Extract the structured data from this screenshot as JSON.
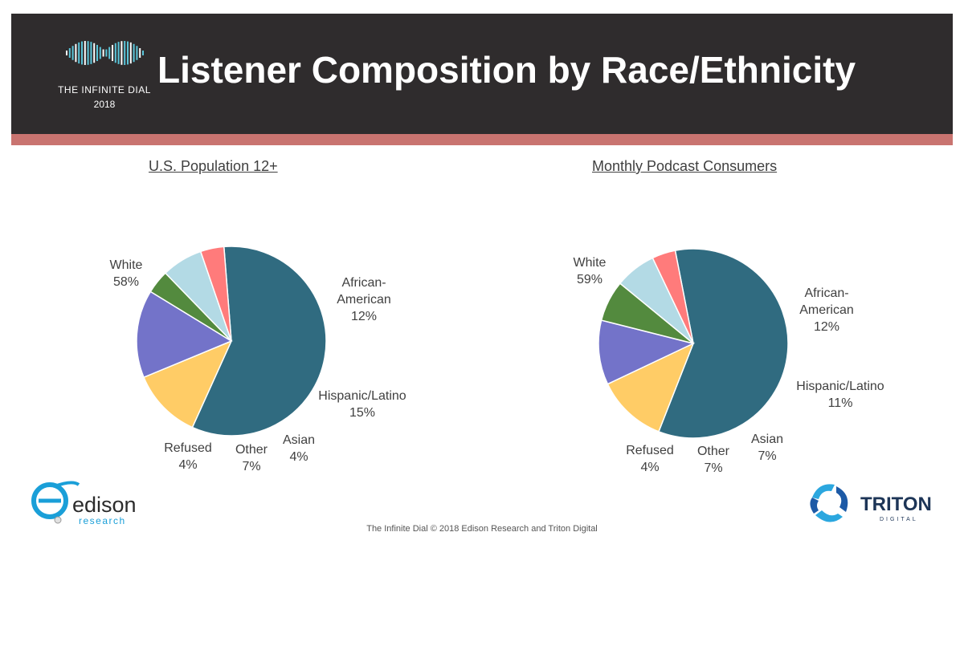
{
  "header": {
    "title": "Listener Composition by Race/Ethnicity",
    "logo_line1": "THE INFINITE DIAL",
    "logo_line2": "2018"
  },
  "colors": {
    "white": "#306b80",
    "african_american": "#ffcc66",
    "hispanic_latino": "#7373c9",
    "asian": "#538a3e",
    "other": "#b3dae5",
    "refused": "#ff7b7b",
    "header_bg": "#2f2c2d",
    "stripe": "#c97470"
  },
  "chart_data": [
    {
      "type": "pie",
      "title": "U.S. Population 12+",
      "slices": [
        {
          "label": "White",
          "value": 58,
          "display": "58%"
        },
        {
          "label": "African-\nAmerican",
          "value": 12,
          "display": "12%"
        },
        {
          "label": "Hispanic/Latino",
          "value": 15,
          "display": "15%"
        },
        {
          "label": "Asian",
          "value": 4,
          "display": "4%"
        },
        {
          "label": "Other",
          "value": 7,
          "display": "7%"
        },
        {
          "label": "Refused",
          "value": 4,
          "display": "4%"
        }
      ]
    },
    {
      "type": "pie",
      "title": "Monthly Podcast Consumers",
      "slices": [
        {
          "label": "White",
          "value": 59,
          "display": "59%"
        },
        {
          "label": "African-\nAmerican",
          "value": 12,
          "display": "12%"
        },
        {
          "label": "Hispanic/Latino",
          "value": 11,
          "display": "11%"
        },
        {
          "label": "Asian",
          "value": 7,
          "display": "7%"
        },
        {
          "label": "Other",
          "value": 7,
          "display": "7%"
        },
        {
          "label": "Refused",
          "value": 4,
          "display": "4%"
        }
      ]
    }
  ],
  "footer": {
    "copyright": "The Infinite Dial   © 2018 Edison Research and Triton Digital",
    "edison_name": "edison",
    "edison_sub": "research",
    "triton_name": "TRITON",
    "triton_sub": "DIGITAL"
  }
}
